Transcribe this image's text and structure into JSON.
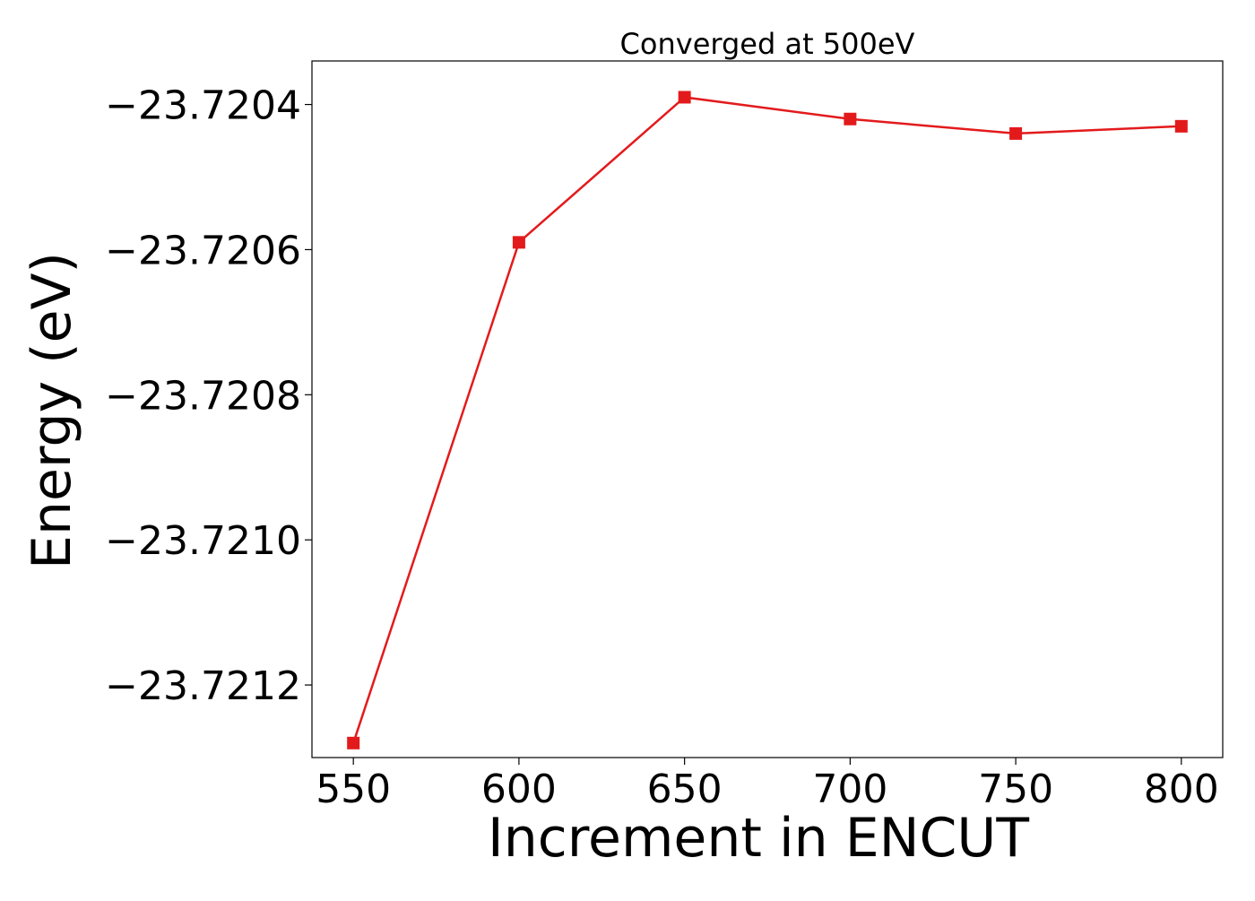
{
  "chart_data": {
    "type": "line",
    "title": "Converged at 500eV",
    "xlabel": "Increment in ENCUT",
    "ylabel": "Energy (eV)",
    "x": [
      550,
      600,
      650,
      700,
      750,
      800
    ],
    "series": [
      {
        "values": [
          -23.72128,
          -23.72059,
          -23.72039,
          -23.72042,
          -23.72044,
          -23.72043
        ],
        "color": "#e31a1c",
        "marker": "square"
      }
    ],
    "xticks": [
      550,
      600,
      650,
      700,
      750,
      800
    ],
    "xtick_labels": [
      "550",
      "600",
      "650",
      "700",
      "750",
      "800"
    ],
    "yticks": [
      -23.7212,
      -23.721,
      -23.7208,
      -23.7206,
      -23.7204
    ],
    "ytick_labels": [
      "−23.7212",
      "−23.7210",
      "−23.7208",
      "−23.7206",
      "−23.7204"
    ],
    "xlim": [
      537.5,
      812.5
    ],
    "ylim": [
      -23.7213,
      -23.72034
    ],
    "grid": false,
    "legend": "none"
  }
}
